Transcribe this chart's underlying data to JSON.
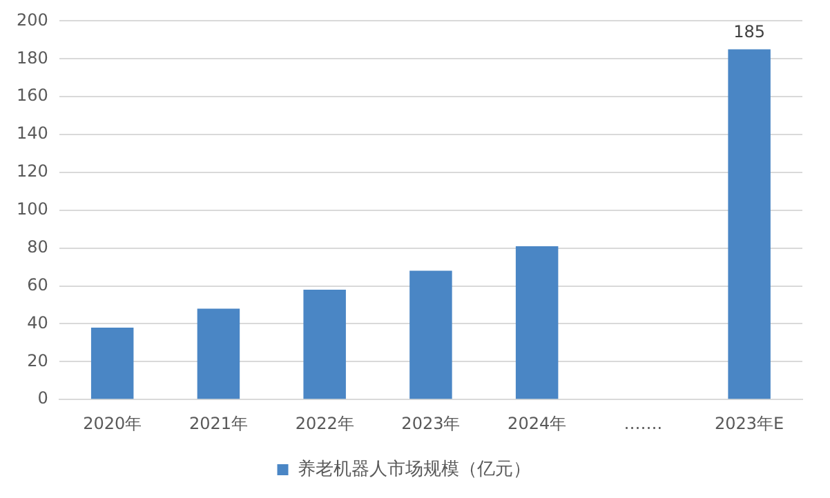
{
  "chart_data": {
    "type": "bar",
    "categories": [
      "2020年",
      "2021年",
      "2022年",
      "2023年",
      "2024年",
      "…….",
      "2023年E"
    ],
    "series": [
      {
        "name": "养老机器人市场规模（亿元）",
        "color": "#4a86c5",
        "values": [
          38,
          48,
          58,
          68,
          81,
          null,
          185
        ],
        "value_labels": [
          null,
          null,
          null,
          null,
          null,
          null,
          "185"
        ]
      }
    ],
    "ylim": [
      0,
      200
    ],
    "yticks": [
      0,
      20,
      40,
      60,
      80,
      100,
      120,
      140,
      160,
      180,
      200
    ],
    "grid": "y",
    "legend": "bottom"
  }
}
